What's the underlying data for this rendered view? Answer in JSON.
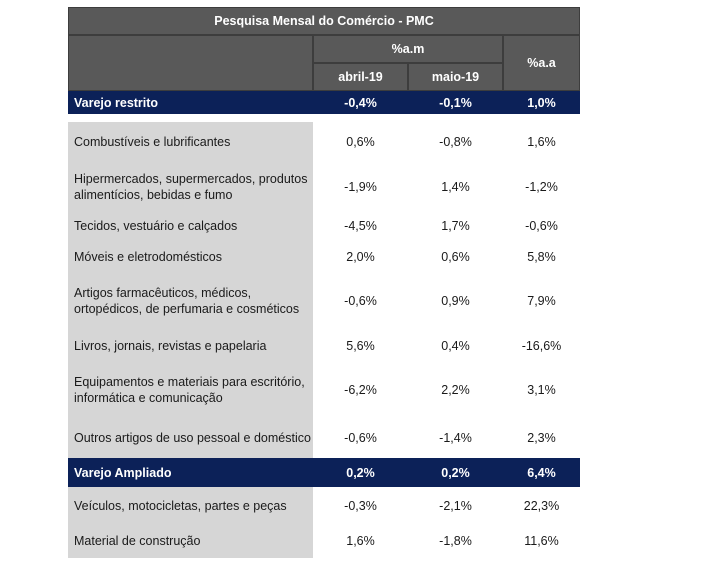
{
  "table": {
    "title": "Pesquisa Mensal do Comércio - PMC",
    "header_am": "%a.m",
    "header_aa": "%a.a",
    "month1": "abril-19",
    "month2": "maio-19",
    "rows": [
      {
        "label": "Varejo restrito",
        "v1": "-0,4%",
        "v2": "-0,1%",
        "v3": "1,0%",
        "highlight": true
      },
      {
        "label": "Combustíveis e lubrificantes",
        "v1": "0,6%",
        "v2": "-0,8%",
        "v3": "1,6%",
        "highlight": false
      },
      {
        "label": "Hipermercados, supermercados, produtos alimentícios, bebidas e fumo",
        "v1": "-1,9%",
        "v2": "1,4%",
        "v3": "-1,2%",
        "highlight": false
      },
      {
        "label": "Tecidos, vestuário e calçados",
        "v1": "-4,5%",
        "v2": "1,7%",
        "v3": "-0,6%",
        "highlight": false
      },
      {
        "label": "Móveis e eletrodomésticos",
        "v1": "2,0%",
        "v2": "0,6%",
        "v3": "5,8%",
        "highlight": false
      },
      {
        "label": "Artigos farmacêuticos, médicos, ortopédicos, de perfumaria e cosméticos",
        "v1": "-0,6%",
        "v2": "0,9%",
        "v3": "7,9%",
        "highlight": false
      },
      {
        "label": "Livros, jornais, revistas e papelaria",
        "v1": "5,6%",
        "v2": "0,4%",
        "v3": "-16,6%",
        "highlight": false
      },
      {
        "label": "Equipamentos e materiais para escritório, informática e comunicação",
        "v1": "-6,2%",
        "v2": "2,2%",
        "v3": "3,1%",
        "highlight": false
      },
      {
        "label": "Outros artigos de uso pessoal e doméstico",
        "v1": "-0,6%",
        "v2": "-1,4%",
        "v3": "2,3%",
        "highlight": false
      },
      {
        "label": "Varejo Ampliado",
        "v1": "0,2%",
        "v2": "0,2%",
        "v3": "6,4%",
        "highlight": true
      },
      {
        "label": "Veículos, motocicletas, partes e peças",
        "v1": "-0,3%",
        "v2": "-2,1%",
        "v3": "22,3%",
        "highlight": false
      },
      {
        "label": "Material de construção",
        "v1": "1,6%",
        "v2": "-1,8%",
        "v3": "11,6%",
        "highlight": false
      }
    ]
  },
  "colors": {
    "header_bg": "#595959",
    "highlight_bg": "#0c2158",
    "label_bg": "#d6d6d6"
  }
}
